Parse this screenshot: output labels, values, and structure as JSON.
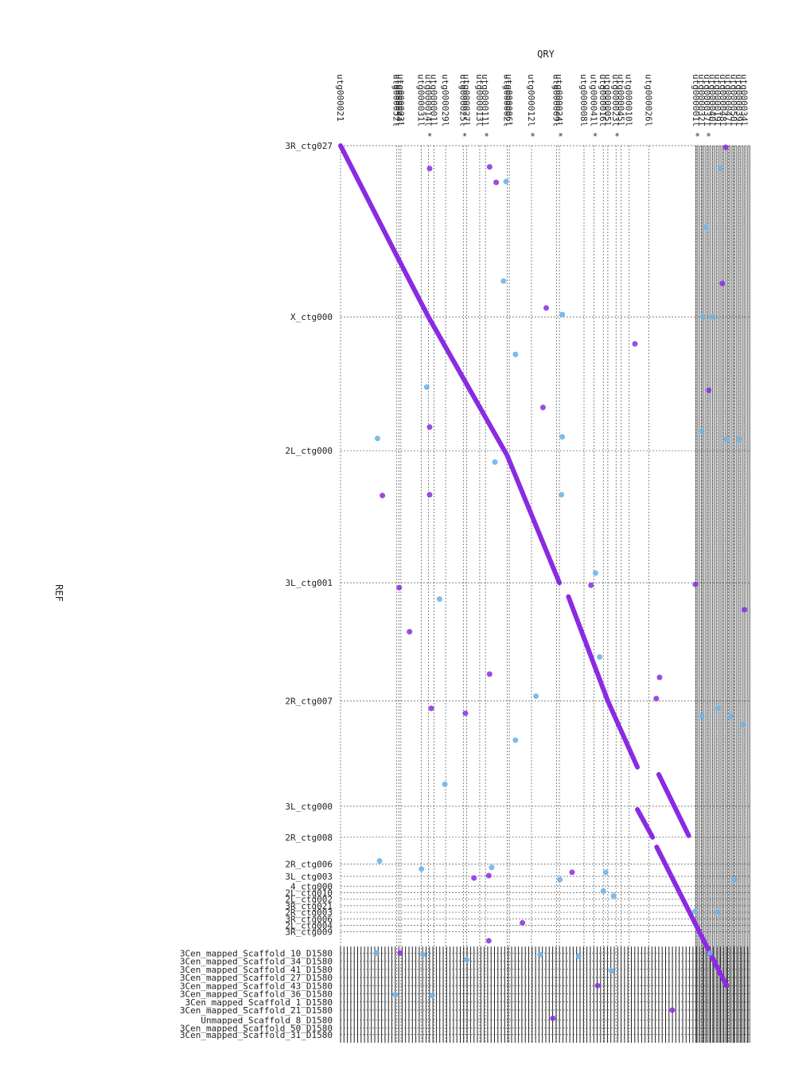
{
  "chart_data": {
    "type": "scatter",
    "title": "",
    "xlabel": "QRY",
    "ylabel": "REF",
    "grid": true,
    "colors": {
      "forward": "#8a2be2",
      "reverse": "#6fb4e8",
      "grid": "#555555"
    },
    "x_ticks": [
      {
        "label": "utg000021",
        "pos": 0.0
      },
      {
        "label": "utg000052l",
        "pos": 0.137
      },
      {
        "label": "utg000044l",
        "pos": 0.142
      },
      {
        "label": "utg000003l",
        "pos": 0.147
      },
      {
        "label": "utg000031l",
        "pos": 0.197
      },
      {
        "label": "utg000014l *",
        "pos": 0.214
      },
      {
        "label": "utg000001l",
        "pos": 0.228
      },
      {
        "label": "utg000029l",
        "pos": 0.256
      },
      {
        "label": "utg000025l *",
        "pos": 0.299
      },
      {
        "label": "utg000027l",
        "pos": 0.307
      },
      {
        "label": "utg000013l",
        "pos": 0.339
      },
      {
        "label": "utg000011l *",
        "pos": 0.353
      },
      {
        "label": "utg000002l",
        "pos": 0.406
      },
      {
        "label": "utg000006l",
        "pos": 0.411
      },
      {
        "label": "utg000012l *",
        "pos": 0.465
      },
      {
        "label": "utg000009l",
        "pos": 0.526
      },
      {
        "label": "utg000024l *",
        "pos": 0.533
      },
      {
        "label": "utg000008l",
        "pos": 0.593
      },
      {
        "label": "utg000041l *",
        "pos": 0.617
      },
      {
        "label": "utg000016l",
        "pos": 0.64
      },
      {
        "label": "utg000005l",
        "pos": 0.651
      },
      {
        "label": "utg000023l *",
        "pos": 0.671
      },
      {
        "label": "utg000045l",
        "pos": 0.683
      },
      {
        "label": "utg000010l",
        "pos": 0.703
      },
      {
        "label": "utg000026l",
        "pos": 0.751
      },
      {
        "label": "utg000001l *",
        "pos": 0.866
      },
      {
        "label": "utg000032l",
        "pos": 0.88
      },
      {
        "label": "utg000037l *",
        "pos": 0.893
      },
      {
        "label": "utg000040l",
        "pos": 0.906
      },
      {
        "label": "utg000019l",
        "pos": 0.919
      },
      {
        "label": "utg000048l",
        "pos": 0.932
      },
      {
        "label": "utg000047l",
        "pos": 0.945
      },
      {
        "label": "utg000050l",
        "pos": 0.958
      },
      {
        "label": "utg000039l",
        "pos": 0.971
      },
      {
        "label": "utg000034l",
        "pos": 0.984
      }
    ],
    "y_ticks": [
      {
        "label": "3R_ctg027",
        "pos": 0.0
      },
      {
        "label": "X_ctg000",
        "pos": 0.21
      },
      {
        "label": "2L_ctg000",
        "pos": 0.374
      },
      {
        "label": "3L_ctg001",
        "pos": 0.536
      },
      {
        "label": "2R_ctg007",
        "pos": 0.681
      },
      {
        "label": "3L_ctg000",
        "pos": 0.81
      },
      {
        "label": "2R_ctg008",
        "pos": 0.848
      },
      {
        "label": "2R_ctg006",
        "pos": 0.881
      },
      {
        "label": "3L_ctg003",
        "pos": 0.896
      },
      {
        "label": "4_ctg000",
        "pos": 0.908
      },
      {
        "label": "2L_ctg010",
        "pos": 0.916
      },
      {
        "label": "2L_ctg002",
        "pos": 0.924
      },
      {
        "label": "3R_ctg021",
        "pos": 0.932
      },
      {
        "label": "2R_ctg003",
        "pos": 0.94
      },
      {
        "label": "3R_ctg006",
        "pos": 0.948
      },
      {
        "label": "2L_ctg004",
        "pos": 0.956
      },
      {
        "label": "3R_ctg009",
        "pos": 0.964
      },
      {
        "label": "3Cen_mapped_Scaffold_10_D1580",
        "pos": 0.99
      },
      {
        "label": "3Cen_mapped_Scaffold_34_D1580",
        "pos": 1.0
      },
      {
        "label": "3Cen_mapped_Scaffold_41_D1580",
        "pos": 1.01
      },
      {
        "label": "3Cen_mapped_Scaffold_27_D1580",
        "pos": 1.02
      },
      {
        "label": "3Cen_mapped_Scaffold_43_D1580",
        "pos": 1.03
      },
      {
        "label": "3Cen_mapped_Scaffold_36_D1580",
        "pos": 1.04
      },
      {
        "label": "3Cen_mapped_Scaffold_1_D1580",
        "pos": 1.05
      },
      {
        "label": "3Cen_mapped_Scaffold_21_D1580",
        "pos": 1.06
      },
      {
        "label": "Unmapped_Scaffold_8_D1580",
        "pos": 1.072
      },
      {
        "label": "3Cen_mapped_Scaffold_50_D1580",
        "pos": 1.082
      },
      {
        "label": "3Cen_mapped_Scaffold_31_D1580",
        "pos": 1.09
      }
    ],
    "forward_segments": [
      {
        "x": [
          0.0,
          0.142
        ],
        "y": [
          0.0,
          0.14
        ]
      },
      {
        "x": [
          0.142,
          0.214
        ],
        "y": [
          0.14,
          0.21
        ]
      },
      {
        "x": [
          0.214,
          0.406
        ],
        "y": [
          0.21,
          0.38
        ]
      },
      {
        "x": [
          0.406,
          0.533
        ],
        "y": [
          0.38,
          0.536
        ]
      },
      {
        "x": [
          0.555,
          0.651
        ],
        "y": [
          0.553,
          0.681
        ]
      },
      {
        "x": [
          0.651,
          0.723
        ],
        "y": [
          0.681,
          0.762
        ]
      },
      {
        "x": [
          0.775,
          0.848
        ],
        "y": [
          0.771,
          0.846
        ]
      },
      {
        "x": [
          0.723,
          0.76
        ],
        "y": [
          0.814,
          0.848
        ]
      },
      {
        "x": [
          0.77,
          0.94
        ],
        "y": [
          0.86,
          1.03
        ]
      }
    ],
    "forward_points": [
      {
        "x": 0.217,
        "y": 0.028
      },
      {
        "x": 0.363,
        "y": 0.026
      },
      {
        "x": 0.379,
        "y": 0.045
      },
      {
        "x": 0.501,
        "y": 0.199
      },
      {
        "x": 0.493,
        "y": 0.321
      },
      {
        "x": 0.717,
        "y": 0.243
      },
      {
        "x": 0.217,
        "y": 0.345
      },
      {
        "x": 0.102,
        "y": 0.429
      },
      {
        "x": 0.217,
        "y": 0.428
      },
      {
        "x": 0.143,
        "y": 0.542
      },
      {
        "x": 0.168,
        "y": 0.596
      },
      {
        "x": 0.363,
        "y": 0.648
      },
      {
        "x": 0.221,
        "y": 0.69
      },
      {
        "x": 0.304,
        "y": 0.696
      },
      {
        "x": 0.769,
        "y": 0.678
      },
      {
        "x": 0.864,
        "y": 0.538
      },
      {
        "x": 0.938,
        "y": 0.002
      },
      {
        "x": 0.984,
        "y": 0.569
      },
      {
        "x": 0.777,
        "y": 0.652
      },
      {
        "x": 0.93,
        "y": 0.169
      },
      {
        "x": 0.897,
        "y": 0.3
      },
      {
        "x": 0.61,
        "y": 0.539
      },
      {
        "x": 0.564,
        "y": 0.891
      },
      {
        "x": 0.325,
        "y": 0.898
      },
      {
        "x": 0.361,
        "y": 0.895
      },
      {
        "x": 0.443,
        "y": 0.953
      },
      {
        "x": 0.145,
        "y": 0.99
      },
      {
        "x": 0.361,
        "y": 0.975
      },
      {
        "x": 0.517,
        "y": 1.07
      },
      {
        "x": 0.626,
        "y": 1.03
      },
      {
        "x": 0.808,
        "y": 1.06
      }
    ],
    "reverse_points": [
      {
        "x": 0.403,
        "y": 0.044
      },
      {
        "x": 0.925,
        "y": 0.028
      },
      {
        "x": 0.397,
        "y": 0.166
      },
      {
        "x": 0.54,
        "y": 0.207
      },
      {
        "x": 0.883,
        "y": 0.21
      },
      {
        "x": 0.906,
        "y": 0.21
      },
      {
        "x": 0.426,
        "y": 0.256
      },
      {
        "x": 0.21,
        "y": 0.296
      },
      {
        "x": 0.54,
        "y": 0.357
      },
      {
        "x": 0.09,
        "y": 0.359
      },
      {
        "x": 0.376,
        "y": 0.388
      },
      {
        "x": 0.538,
        "y": 0.428
      },
      {
        "x": 0.621,
        "y": 0.524
      },
      {
        "x": 0.241,
        "y": 0.556
      },
      {
        "x": 0.631,
        "y": 0.627
      },
      {
        "x": 0.476,
        "y": 0.675
      },
      {
        "x": 0.426,
        "y": 0.729
      },
      {
        "x": 0.254,
        "y": 0.783
      },
      {
        "x": 0.095,
        "y": 0.877
      },
      {
        "x": 0.197,
        "y": 0.887
      },
      {
        "x": 0.368,
        "y": 0.885
      },
      {
        "x": 0.534,
        "y": 0.9
      },
      {
        "x": 0.646,
        "y": 0.891
      },
      {
        "x": 0.64,
        "y": 0.914
      },
      {
        "x": 0.863,
        "y": 0.939
      },
      {
        "x": 0.665,
        "y": 0.92
      },
      {
        "x": 0.087,
        "y": 0.99
      },
      {
        "x": 0.201,
        "y": 0.992
      },
      {
        "x": 0.307,
        "y": 0.998
      },
      {
        "x": 0.486,
        "y": 0.992
      },
      {
        "x": 0.58,
        "y": 0.994
      },
      {
        "x": 0.66,
        "y": 1.012
      },
      {
        "x": 0.223,
        "y": 1.042
      },
      {
        "x": 0.133,
        "y": 1.041
      },
      {
        "x": 0.9,
        "y": 0.99
      },
      {
        "x": 0.92,
        "y": 0.94
      },
      {
        "x": 0.96,
        "y": 0.9
      },
      {
        "x": 0.95,
        "y": 0.7
      },
      {
        "x": 0.92,
        "y": 0.69
      },
      {
        "x": 0.88,
        "y": 0.7
      },
      {
        "x": 0.98,
        "y": 0.71
      },
      {
        "x": 0.89,
        "y": 0.1
      },
      {
        "x": 0.94,
        "y": 0.36
      },
      {
        "x": 0.97,
        "y": 0.36
      },
      {
        "x": 0.88,
        "y": 0.35
      }
    ]
  }
}
